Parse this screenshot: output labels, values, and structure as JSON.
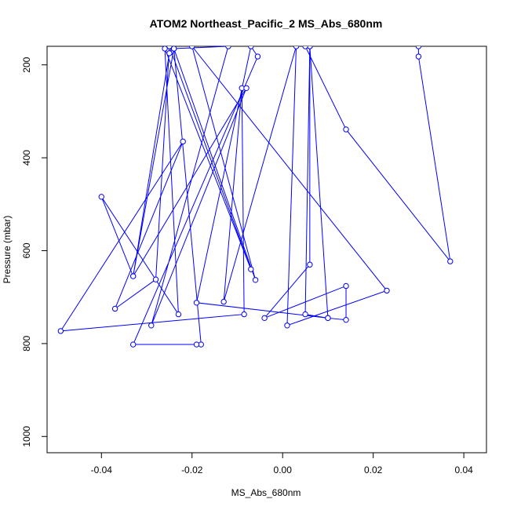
{
  "chart_data": {
    "type": "line",
    "title": "ATOM2 Northeast_Pacific_2 MS_Abs_680nm",
    "xlabel": "MS_Abs_680nm",
    "ylabel": "Pressure (mbar)",
    "xlim": [
      -0.052,
      0.045
    ],
    "ylim": [
      1035,
      160
    ],
    "y_reversed": true,
    "xticks": [
      -0.04,
      -0.02,
      0.0,
      0.02,
      0.04
    ],
    "xtick_labels": [
      "-0.04",
      "-0.02",
      "0.00",
      "0.02",
      "0.04"
    ],
    "yticks": [
      200,
      400,
      600,
      800,
      1000
    ],
    "ytick_labels": [
      "200",
      "400",
      "600",
      "800",
      "1000"
    ],
    "grid": false,
    "legend": "none",
    "series": [
      {
        "color": "#0000ff",
        "marker": "open-circle",
        "points": [
          {
            "x": -0.025,
            "y": 175
          },
          {
            "x": -0.033,
            "y": 655
          },
          {
            "x": -0.024,
            "y": 165
          },
          {
            "x": -0.006,
            "y": 663
          },
          {
            "x": -0.02,
            "y": 160
          },
          {
            "x": 0.023,
            "y": 686
          },
          {
            "x": 0.001,
            "y": 761
          },
          {
            "x": 0.003,
            "y": 160
          },
          {
            "x": -0.013,
            "y": 710
          },
          {
            "x": -0.009,
            "y": 250
          },
          {
            "x": -0.0085,
            "y": 737
          },
          {
            "x": -0.049,
            "y": 773
          },
          {
            "x": -0.022,
            "y": 365
          },
          {
            "x": -0.037,
            "y": 725
          },
          {
            "x": -0.028,
            "y": 662
          },
          {
            "x": -0.025,
            "y": 160
          },
          {
            "x": -0.007,
            "y": 640
          },
          {
            "x": -0.026,
            "y": 165
          },
          {
            "x": -0.023,
            "y": 737
          },
          {
            "x": -0.04,
            "y": 484
          },
          {
            "x": -0.033,
            "y": 655
          },
          {
            "x": -0.008,
            "y": 250
          },
          {
            "x": -0.029,
            "y": 761
          },
          {
            "x": -0.012,
            "y": 160
          },
          {
            "x": -0.024,
            "y": 165
          },
          {
            "x": -0.018,
            "y": 802
          },
          {
            "x": -0.019,
            "y": 802
          },
          {
            "x": -0.033,
            "y": 802
          },
          {
            "x": -0.0055,
            "y": 182
          },
          {
            "x": -0.007,
            "y": 160
          },
          {
            "x": -0.019,
            "y": 712
          },
          {
            "x": 0.01,
            "y": 745
          },
          {
            "x": 0.005,
            "y": 737
          },
          {
            "x": 0.006,
            "y": 160
          },
          {
            "x": 0.006,
            "y": 630
          },
          {
            "x": -0.004,
            "y": 745
          },
          {
            "x": 0.014,
            "y": 676
          },
          {
            "x": 0.014,
            "y": 749
          },
          {
            "x": 0.01,
            "y": 745
          },
          {
            "x": 0.006,
            "y": 160
          },
          {
            "x": 0.005,
            "y": 160
          },
          {
            "x": 0.014,
            "y": 339
          },
          {
            "x": 0.037,
            "y": 623
          },
          {
            "x": 0.03,
            "y": 182
          },
          {
            "x": 0.03,
            "y": 160
          }
        ]
      }
    ]
  }
}
